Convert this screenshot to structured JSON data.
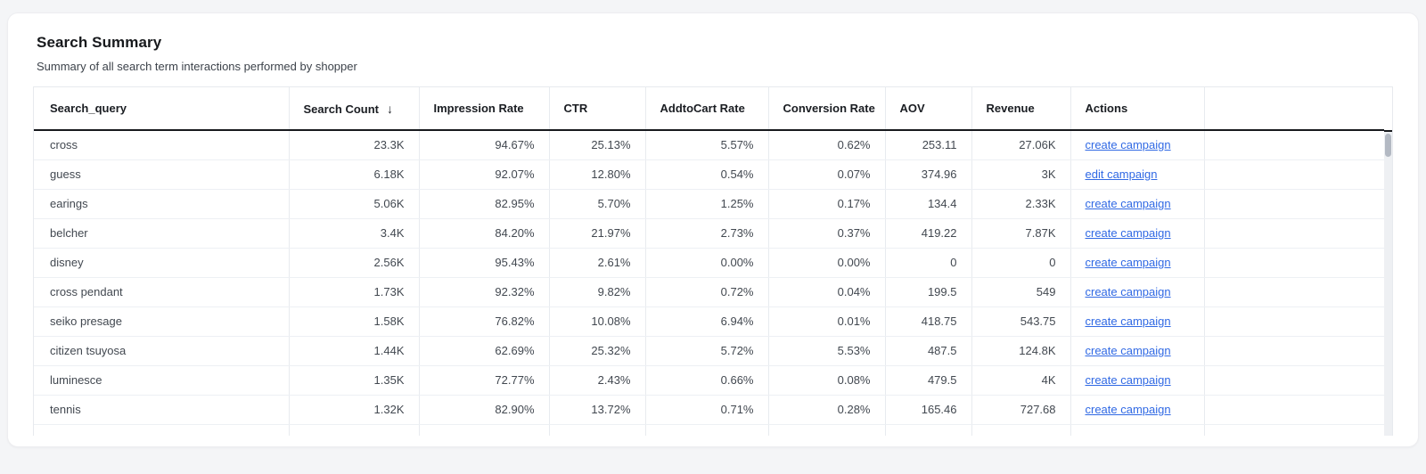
{
  "card": {
    "title": "Search Summary",
    "subtitle": "Summary of all search term interactions performed by shopper"
  },
  "table": {
    "headers": [
      "Search_query",
      "Search Count",
      "Impression Rate",
      "CTR",
      "AddtoCart Rate",
      "Conversion Rate",
      "AOV",
      "Revenue",
      "Actions",
      ""
    ],
    "sort_indicator": "↓",
    "sorted_column": "Search Count",
    "sort_direction": "descending",
    "rows": [
      {
        "query": "cross",
        "count": "23.3K",
        "impression": "94.67%",
        "ctr": "25.13%",
        "atc": "5.57%",
        "conversion": "0.62%",
        "aov": "253.11",
        "revenue": "27.06K",
        "action": "create campaign"
      },
      {
        "query": "guess",
        "count": "6.18K",
        "impression": "92.07%",
        "ctr": "12.80%",
        "atc": "0.54%",
        "conversion": "0.07%",
        "aov": "374.96",
        "revenue": "3K",
        "action": "edit campaign"
      },
      {
        "query": "earings",
        "count": "5.06K",
        "impression": "82.95%",
        "ctr": "5.70%",
        "atc": "1.25%",
        "conversion": "0.17%",
        "aov": "134.4",
        "revenue": "2.33K",
        "action": "create campaign"
      },
      {
        "query": "belcher",
        "count": "3.4K",
        "impression": "84.20%",
        "ctr": "21.97%",
        "atc": "2.73%",
        "conversion": "0.37%",
        "aov": "419.22",
        "revenue": "7.87K",
        "action": "create campaign"
      },
      {
        "query": "disney",
        "count": "2.56K",
        "impression": "95.43%",
        "ctr": "2.61%",
        "atc": "0.00%",
        "conversion": "0.00%",
        "aov": "0",
        "revenue": "0",
        "action": "create campaign"
      },
      {
        "query": "cross pendant",
        "count": "1.73K",
        "impression": "92.32%",
        "ctr": "9.82%",
        "atc": "0.72%",
        "conversion": "0.04%",
        "aov": "199.5",
        "revenue": "549",
        "action": "create campaign"
      },
      {
        "query": "seiko presage",
        "count": "1.58K",
        "impression": "76.82%",
        "ctr": "10.08%",
        "atc": "6.94%",
        "conversion": "0.01%",
        "aov": "418.75",
        "revenue": "543.75",
        "action": "create campaign"
      },
      {
        "query": "citizen tsuyosa",
        "count": "1.44K",
        "impression": "62.69%",
        "ctr": "25.32%",
        "atc": "5.72%",
        "conversion": "5.53%",
        "aov": "487.5",
        "revenue": "124.8K",
        "action": "create campaign"
      },
      {
        "query": "luminesce",
        "count": "1.35K",
        "impression": "72.77%",
        "ctr": "2.43%",
        "atc": "0.66%",
        "conversion": "0.08%",
        "aov": "479.5",
        "revenue": "4K",
        "action": "create campaign"
      },
      {
        "query": "tennis",
        "count": "1.32K",
        "impression": "82.90%",
        "ctr": "13.72%",
        "atc": "0.71%",
        "conversion": "0.28%",
        "aov": "165.46",
        "revenue": "727.68",
        "action": "create campaign"
      }
    ],
    "colors": {
      "link": "#3069e4",
      "header_underline": "#17191d",
      "row_border": "#edf0f4",
      "column_border": "#e8ebef",
      "page_background": "#f4f5f7",
      "scrollbar_thumb": "#b3b9c3"
    }
  }
}
